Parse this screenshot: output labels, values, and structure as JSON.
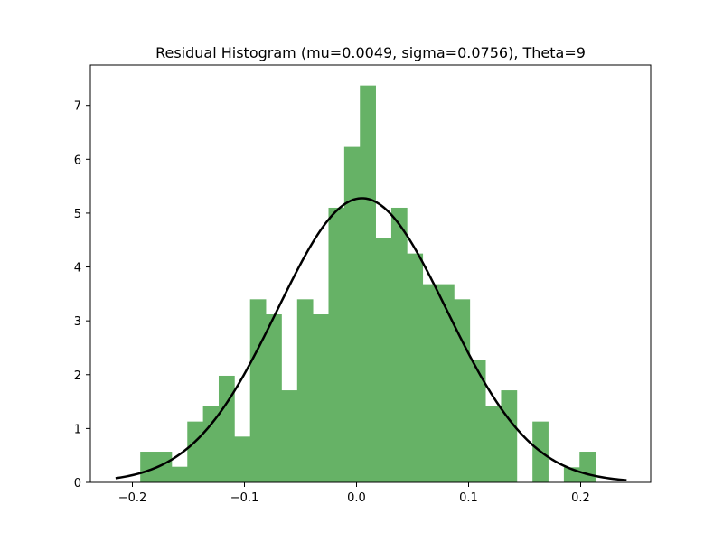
{
  "chart_data": {
    "type": "bar",
    "title": "Residual Histogram (mu=0.0049, sigma=0.0756), Theta=9",
    "xlabel": "",
    "ylabel": "",
    "xlim": [
      -0.2375,
      0.2625
    ],
    "ylim": [
      0,
      7.75
    ],
    "grid": false,
    "legend": "none",
    "bar_color": "#66b266",
    "curve_color": "#000000",
    "xticks": [
      -0.2,
      -0.1,
      0.0,
      0.1,
      0.2
    ],
    "xtick_labels": [
      "−0.2",
      "−0.1",
      "0.0",
      "0.1",
      "0.2"
    ],
    "yticks": [
      0,
      1,
      2,
      3,
      4,
      5,
      6,
      7
    ],
    "ytick_labels": [
      "0",
      "1",
      "2",
      "3",
      "4",
      "5",
      "6",
      "7"
    ],
    "bins": {
      "left_edges": [
        -0.193,
        -0.179,
        -0.165,
        -0.151,
        -0.137,
        -0.123,
        -0.109,
        -0.095,
        -0.081,
        -0.067,
        -0.053,
        -0.039,
        -0.025,
        -0.011,
        0.003,
        0.017,
        0.031,
        0.045,
        0.059,
        0.073,
        0.087,
        0.101,
        0.115,
        0.129,
        0.143,
        0.157,
        0.171,
        0.185,
        0.199
      ],
      "width": 0.014,
      "values": [
        0.57,
        0.57,
        0.29,
        1.13,
        1.42,
        1.98,
        0.85,
        3.4,
        3.12,
        1.71,
        3.4,
        3.12,
        5.1,
        6.23,
        7.37,
        4.53,
        5.1,
        4.25,
        3.68,
        3.68,
        3.4,
        2.27,
        1.42,
        1.71,
        0,
        1.13,
        0,
        0.28,
        0.57
      ]
    },
    "fit_curve": {
      "distribution": "normal",
      "mu": 0.0049,
      "sigma": 0.0756,
      "x_range": [
        -0.215,
        0.241
      ]
    }
  }
}
